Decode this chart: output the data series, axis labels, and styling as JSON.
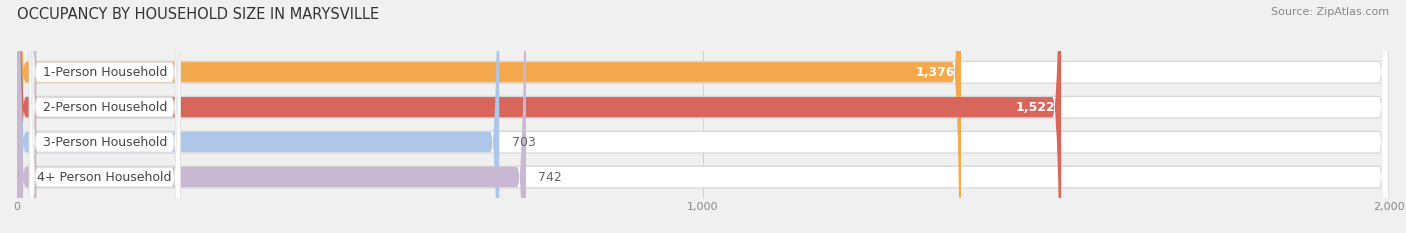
{
  "title": "OCCUPANCY BY HOUSEHOLD SIZE IN MARYSVILLE",
  "source": "Source: ZipAtlas.com",
  "categories": [
    "1-Person Household",
    "2-Person Household",
    "3-Person Household",
    "4+ Person Household"
  ],
  "values": [
    1376,
    1522,
    703,
    742
  ],
  "bar_colors": [
    "#f5a94e",
    "#d9665a",
    "#aec6e8",
    "#c9b8d4"
  ],
  "bar_edge_colors": [
    "#e8943a",
    "#c44f45",
    "#8aafd8",
    "#b89cc0"
  ],
  "xlim": [
    0,
    2000
  ],
  "xticks": [
    0,
    1000,
    2000
  ],
  "background_color": "#f0f0f0",
  "bar_bg_color": "#f0f0f0",
  "bar_bg_inner_color": "#ffffff",
  "title_fontsize": 10.5,
  "source_fontsize": 8,
  "label_fontsize": 9,
  "value_fontsize": 9
}
